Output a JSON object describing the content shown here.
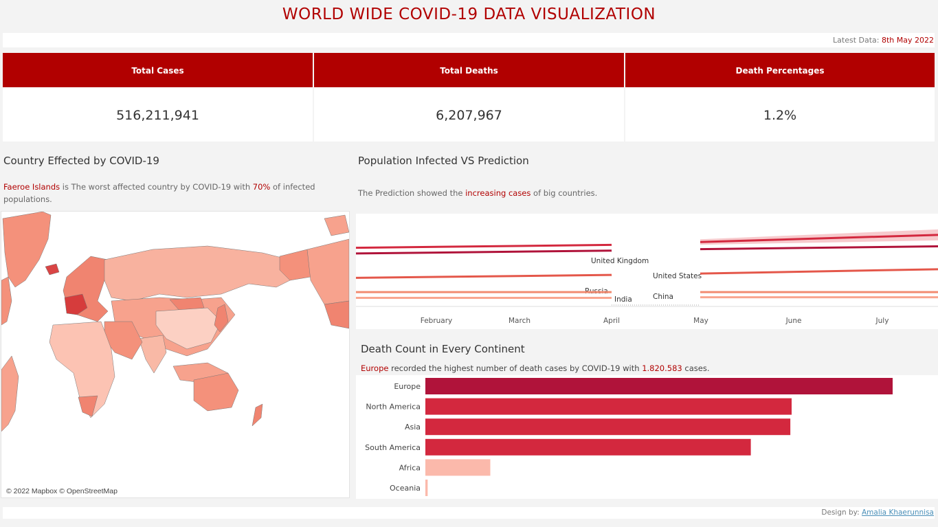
{
  "title": "WORLD WIDE COVID-19 DATA VISUALIZATION",
  "latest": {
    "label": "Latest Data:",
    "date": "8th May 2022"
  },
  "kpis": {
    "cases_label": "Total Cases",
    "cases_value": "516,211,941",
    "deaths_label": "Total Deaths",
    "deaths_value": "6,207,967",
    "pct_label": "Death Percentages",
    "pct_value": "1.2%"
  },
  "map_section": {
    "title": "Country Effected by COVID-19",
    "caption_country": "Faeroe Islands",
    "caption_mid": " is The worst affected country by COVID-19 with ",
    "caption_pct": "70%",
    "caption_end": " of infected populations.",
    "credit": "© 2022 Mapbox © OpenStreetMap"
  },
  "prediction_section": {
    "title": "Population Infected VS Prediction",
    "caption_start": "The Prediction showed the ",
    "caption_highlight": "increasing cases",
    "caption_end": " of big countries."
  },
  "death_section": {
    "title": "Death Count in Every Continent",
    "caption_continent": "Europe",
    "caption_mid": " recorded the highest number of death cases by COVID-19 with ",
    "caption_value": "1.820.583",
    "caption_end": " cases."
  },
  "footer": {
    "label": "Design by:",
    "author": "Amalia Khaerunnisa"
  },
  "colors": {
    "accent": "#b10000",
    "bar_dark": "#b0133a",
    "bar_mid": "#d3283e",
    "bar_light": "#fbb9ab"
  },
  "chart_data": [
    {
      "type": "line",
      "x_ticks": [
        "February",
        "March",
        "April",
        "May",
        "June",
        "July"
      ],
      "series": [
        {
          "name": "United Kingdom",
          "actual": [
            0.205,
            0.215
          ],
          "forecast": [
            0.225,
            0.25
          ]
        },
        {
          "name": "United States",
          "actual": [
            0.185,
            0.195
          ],
          "forecast": [
            0.2,
            0.21
          ]
        },
        {
          "name": "Russia",
          "actual": [
            0.1,
            0.11
          ],
          "forecast": [
            0.115,
            0.13
          ]
        },
        {
          "name": "China",
          "actual": [
            0.05,
            0.05
          ],
          "forecast": [
            0.05,
            0.05
          ]
        },
        {
          "name": "India",
          "actual": [
            0.03,
            0.03
          ],
          "forecast": [
            0.032,
            0.032
          ]
        }
      ]
    },
    {
      "type": "bar",
      "categories": [
        "Europe",
        "North America",
        "Asia",
        "South America",
        "Africa",
        "Oceania"
      ],
      "values": [
        1820583,
        1427000,
        1422000,
        1268000,
        253000,
        9000
      ],
      "xlim": [
        0,
        2000000
      ]
    }
  ]
}
